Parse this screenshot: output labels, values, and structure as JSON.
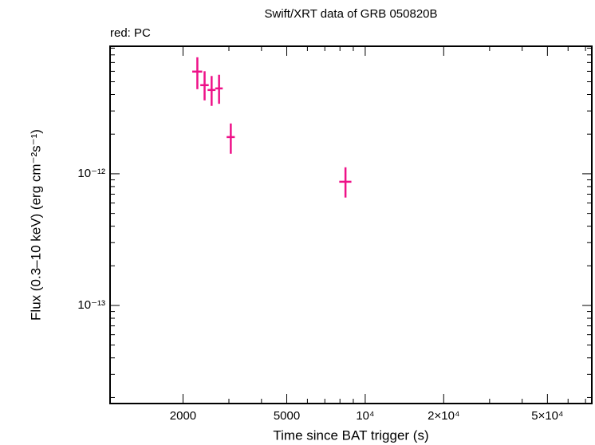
{
  "chart_data": {
    "type": "scatter",
    "title": "Swift/XRT data of GRB 050820B",
    "subtitle": "red: PC",
    "xlabel": "Time since BAT trigger (s)",
    "ylabel": "Flux (0.3–10 keV) (erg cm⁻²s⁻¹)",
    "xscale": "log",
    "yscale": "log",
    "xlim": [
      1050,
      74000
    ],
    "ylim": [
      1.8e-14,
      9.3e-12
    ],
    "xticks": [
      2000,
      5000,
      {
        "value": 10000,
        "label": "10⁴"
      },
      {
        "value": 20000,
        "label": "2×10⁴"
      },
      {
        "value": 50000,
        "label": "5×10⁴"
      }
    ],
    "xminorticks": [
      3000,
      4000,
      6000,
      7000,
      8000,
      9000,
      30000,
      40000,
      60000,
      70000
    ],
    "yticks": [
      {
        "value": 1e-13,
        "label": "10⁻¹³"
      },
      {
        "value": 1e-12,
        "label": "10⁻¹²"
      }
    ],
    "yminorticks": [
      2e-14,
      3e-14,
      4e-14,
      5e-14,
      6e-14,
      7e-14,
      8e-14,
      9e-14,
      2e-13,
      3e-13,
      4e-13,
      5e-13,
      6e-13,
      7e-13,
      8e-13,
      9e-13,
      2e-12,
      3e-12,
      4e-12,
      5e-12,
      6e-12,
      7e-12,
      8e-12,
      9e-12
    ],
    "series": [
      {
        "name": "PC",
        "color": "#ee1188",
        "x": [
          2270,
          2420,
          2575,
          2750,
          3050,
          8400
        ],
        "xerr": [
          100,
          90,
          90,
          90,
          110,
          450
        ],
        "values": [
          5.97e-12,
          4.71e-12,
          4.33e-12,
          4.45e-12,
          1.9e-12,
          8.7e-13
        ],
        "yerr_minus": [
          1.58e-12,
          1.1e-12,
          1.05e-12,
          1.05e-12,
          4.8e-13,
          2.1e-13
        ],
        "yerr_plus": [
          1.7e-12,
          1.3e-12,
          1.2e-12,
          1.2e-12,
          5.1e-13,
          2.5e-13
        ]
      }
    ]
  }
}
